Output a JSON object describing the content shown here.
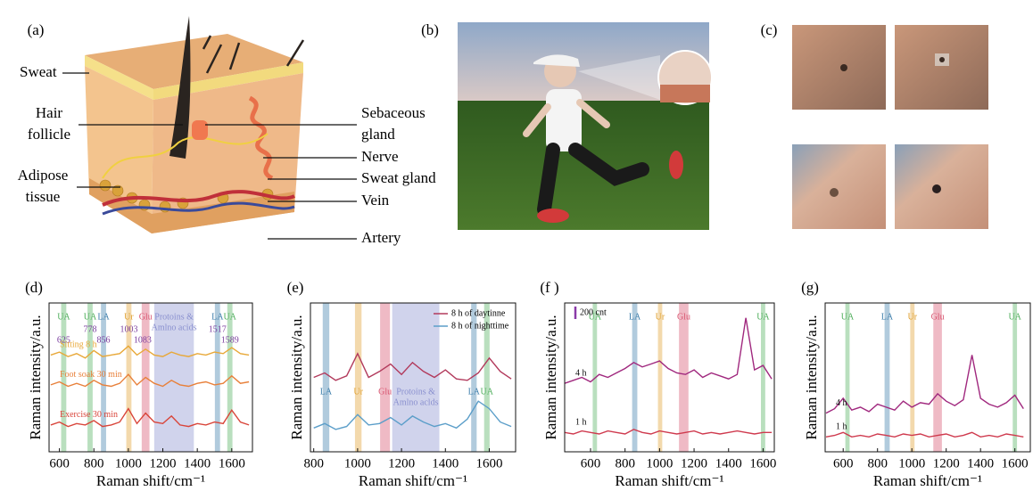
{
  "figure": {
    "a": {
      "label": "(a)",
      "annotations": [
        {
          "lines": [
            "Sweat"
          ]
        },
        {
          "lines": [
            "Hair",
            "follicle"
          ]
        },
        {
          "lines": [
            "Adipose",
            "tissue"
          ]
        },
        {
          "lines": [
            "Sebaceous",
            "gland"
          ]
        },
        {
          "lines": [
            "Nerve"
          ]
        },
        {
          "lines": [
            "Sweat gland"
          ]
        },
        {
          "lines": [
            "Vein"
          ]
        },
        {
          "lines": [
            "Artery"
          ]
        }
      ]
    },
    "b": {
      "label": "(b)"
    },
    "c": {
      "label": "(c)"
    }
  },
  "chart_data": [
    {
      "type": "line",
      "label": "(d)",
      "xlabel": "Raman shift/cm⁻¹",
      "ylabel": "Raman intensity/a.u.",
      "xlim": [
        540,
        1720
      ],
      "ylim": [
        0,
        10
      ],
      "xticks": [
        600,
        800,
        1000,
        1200,
        1400,
        1600
      ],
      "x": [
        550,
        600,
        650,
        700,
        750,
        800,
        850,
        900,
        950,
        1000,
        1050,
        1100,
        1150,
        1200,
        1250,
        1300,
        1350,
        1400,
        1450,
        1500,
        1550,
        1600,
        1650,
        1700
      ],
      "bands": [
        {
          "lines": [
            "UA"
          ],
          "x": 625,
          "width": 30,
          "color": "#4fae5c"
        },
        {
          "lines": [
            "UA"
          ],
          "x": 778,
          "width": 30,
          "color": "#4fae5c"
        },
        {
          "lines": [
            "LA"
          ],
          "x": 856,
          "width": 30,
          "color": "#3d7eab"
        },
        {
          "lines": [
            "Ur"
          ],
          "x": 1003,
          "width": 30,
          "color": "#e0a030"
        },
        {
          "lines": [
            "Glu"
          ],
          "x": 1100,
          "width": 45,
          "color": "#d8536f"
        },
        {
          "lines": [
            "Protoins &",
            "Amlno acids"
          ],
          "x": 1265,
          "width": 230,
          "color": "#8a90cf"
        },
        {
          "lines": [
            "LA"
          ],
          "x": 1517,
          "width": 30,
          "color": "#3d7eab"
        },
        {
          "lines": [
            "UA"
          ],
          "x": 1589,
          "width": 30,
          "color": "#4fae5c"
        }
      ],
      "peaks": [
        625,
        778,
        856,
        1003,
        1083,
        1517,
        1589
      ],
      "series": [
        {
          "name": "Sitting 8 h",
          "color": "#e8a838",
          "values": [
            6.5,
            6.7,
            6.4,
            6.6,
            6.3,
            6.8,
            6.4,
            6.5,
            6.6,
            7.1,
            6.5,
            6.9,
            6.5,
            6.4,
            6.7,
            6.5,
            6.4,
            6.6,
            6.5,
            6.7,
            6.6,
            7.0,
            6.6,
            6.5
          ]
        },
        {
          "name": "Foot soak 30 min",
          "color": "#e8803a",
          "values": [
            4.5,
            4.7,
            4.4,
            4.6,
            4.4,
            4.8,
            4.5,
            4.4,
            4.6,
            5.2,
            4.5,
            5.0,
            4.6,
            4.4,
            4.8,
            4.5,
            4.4,
            4.6,
            4.7,
            4.5,
            4.6,
            5.1,
            4.6,
            4.7
          ]
        },
        {
          "name": "Exercise 30 min",
          "color": "#d9453a",
          "values": [
            1.8,
            2.0,
            1.7,
            1.9,
            1.8,
            2.1,
            1.7,
            1.8,
            2.0,
            2.9,
            1.9,
            2.6,
            2.0,
            1.9,
            2.4,
            1.8,
            1.7,
            1.9,
            1.8,
            2.0,
            1.9,
            2.8,
            2.0,
            1.8
          ]
        }
      ]
    },
    {
      "type": "line",
      "label": "(e)",
      "xlabel": "Raman shift/cm⁻¹",
      "ylabel": "Raman intensity/a.u.",
      "xlim": [
        785,
        1720
      ],
      "ylim": [
        0,
        10
      ],
      "xticks": [
        800,
        1000,
        1200,
        1400,
        1600
      ],
      "x": [
        800,
        850,
        900,
        950,
        1000,
        1050,
        1100,
        1150,
        1200,
        1250,
        1300,
        1350,
        1400,
        1450,
        1500,
        1550,
        1600,
        1650,
        1700
      ],
      "bands": [
        {
          "lines": [
            "LA"
          ],
          "x": 856,
          "width": 30,
          "color": "#3d7eab"
        },
        {
          "lines": [
            "Ur"
          ],
          "x": 1003,
          "width": 30,
          "color": "#e0a030"
        },
        {
          "lines": [
            "Glu"
          ],
          "x": 1125,
          "width": 45,
          "color": "#d8536f"
        },
        {
          "lines": [
            "Protoins &",
            "Amlno aclds"
          ],
          "x": 1265,
          "width": 215,
          "color": "#8a90cf"
        },
        {
          "lines": [
            "LA"
          ],
          "x": 1530,
          "width": 25,
          "color": "#3d7eab"
        },
        {
          "lines": [
            "UA"
          ],
          "x": 1589,
          "width": 25,
          "color": "#4fae5c"
        }
      ],
      "legend": "upper right",
      "series": [
        {
          "name": "8 h of daytinne",
          "color": "#b23a5c",
          "values": [
            5.0,
            5.3,
            4.8,
            5.1,
            6.6,
            5.0,
            5.4,
            5.9,
            5.2,
            6.0,
            5.4,
            5.0,
            5.5,
            4.9,
            4.8,
            5.3,
            6.3,
            5.4,
            4.9
          ]
        },
        {
          "name": "8 h of nighttime",
          "color": "#5b9ec9",
          "values": [
            1.6,
            1.9,
            1.5,
            1.7,
            2.5,
            1.8,
            1.9,
            2.3,
            1.8,
            2.4,
            2.0,
            1.7,
            1.9,
            1.6,
            2.2,
            3.4,
            2.9,
            2.0,
            1.7
          ]
        }
      ]
    },
    {
      "type": "line",
      "label": "(f )",
      "xlabel": "Raman shift/cm⁻¹",
      "ylabel": "Raman intensity/a.u.",
      "xlim": [
        450,
        1665
      ],
      "ylim": [
        0,
        10
      ],
      "xticks": [
        600,
        800,
        1000,
        1200,
        1400,
        1600
      ],
      "x": [
        450,
        500,
        550,
        600,
        650,
        700,
        750,
        800,
        850,
        900,
        950,
        1000,
        1050,
        1100,
        1150,
        1200,
        1250,
        1300,
        1350,
        1400,
        1450,
        1500,
        1550,
        1600,
        1650
      ],
      "scale_label": "200 cnt",
      "bands": [
        {
          "lines": [
            "UA"
          ],
          "x": 625,
          "width": 25,
          "color": "#4fae5c"
        },
        {
          "lines": [
            "LA"
          ],
          "x": 856,
          "width": 30,
          "color": "#3d7eab"
        },
        {
          "lines": [
            "Ur"
          ],
          "x": 1003,
          "width": 25,
          "color": "#e0a030"
        },
        {
          "lines": [
            "Glu"
          ],
          "x": 1140,
          "width": 55,
          "color": "#d8536f"
        },
        {
          "lines": [
            "UA"
          ],
          "x": 1600,
          "width": 25,
          "color": "#4fae5c"
        }
      ],
      "series": [
        {
          "name": "4 h",
          "color": "#a0287e",
          "values": [
            4.6,
            4.8,
            5.0,
            4.7,
            5.2,
            5.0,
            5.3,
            5.6,
            6.0,
            5.7,
            5.9,
            6.1,
            5.6,
            5.3,
            5.2,
            5.5,
            5.0,
            5.3,
            5.1,
            4.9,
            5.2,
            9.0,
            5.5,
            5.8,
            4.9
          ]
        },
        {
          "name": "1 h",
          "color": "#cf3a4e",
          "values": [
            1.3,
            1.2,
            1.4,
            1.3,
            1.2,
            1.4,
            1.3,
            1.2,
            1.5,
            1.3,
            1.2,
            1.4,
            1.3,
            1.2,
            1.3,
            1.4,
            1.2,
            1.3,
            1.2,
            1.3,
            1.4,
            1.3,
            1.2,
            1.3,
            1.3
          ]
        }
      ]
    },
    {
      "type": "line",
      "label": "(g)",
      "xlabel": "Raman shift/cm⁻¹",
      "ylabel": "Raman intensity/a.u.",
      "xlim": [
        495,
        1690
      ],
      "ylim": [
        0,
        10
      ],
      "xticks": [
        600,
        800,
        1000,
        1200,
        1400,
        1600
      ],
      "x": [
        500,
        550,
        600,
        650,
        700,
        750,
        800,
        850,
        900,
        950,
        1000,
        1050,
        1100,
        1150,
        1200,
        1250,
        1300,
        1350,
        1400,
        1450,
        1500,
        1550,
        1600,
        1650
      ],
      "bands": [
        {
          "lines": [
            "UA"
          ],
          "x": 625,
          "width": 25,
          "color": "#4fae5c"
        },
        {
          "lines": [
            "LA"
          ],
          "x": 856,
          "width": 30,
          "color": "#3d7eab"
        },
        {
          "lines": [
            "Ur"
          ],
          "x": 1003,
          "width": 25,
          "color": "#e0a030"
        },
        {
          "lines": [
            "Glu"
          ],
          "x": 1150,
          "width": 50,
          "color": "#d8536f"
        },
        {
          "lines": [
            "UA"
          ],
          "x": 1600,
          "width": 25,
          "color": "#4fae5c"
        }
      ],
      "series": [
        {
          "name": "4 h",
          "color": "#a0287e",
          "values": [
            2.6,
            2.9,
            3.6,
            2.8,
            3.0,
            2.7,
            3.2,
            3.0,
            2.8,
            3.4,
            3.0,
            3.3,
            3.2,
            3.9,
            3.4,
            3.1,
            3.5,
            6.5,
            3.6,
            3.2,
            3.0,
            3.3,
            3.8,
            2.9
          ]
        },
        {
          "name": "1 h",
          "color": "#cf3a4e",
          "values": [
            1.0,
            1.1,
            1.3,
            1.0,
            1.1,
            1.0,
            1.2,
            1.1,
            1.0,
            1.2,
            1.1,
            1.2,
            1.0,
            1.1,
            1.2,
            1.0,
            1.1,
            1.3,
            1.0,
            1.1,
            1.0,
            1.2,
            1.1,
            1.0
          ]
        }
      ]
    }
  ]
}
